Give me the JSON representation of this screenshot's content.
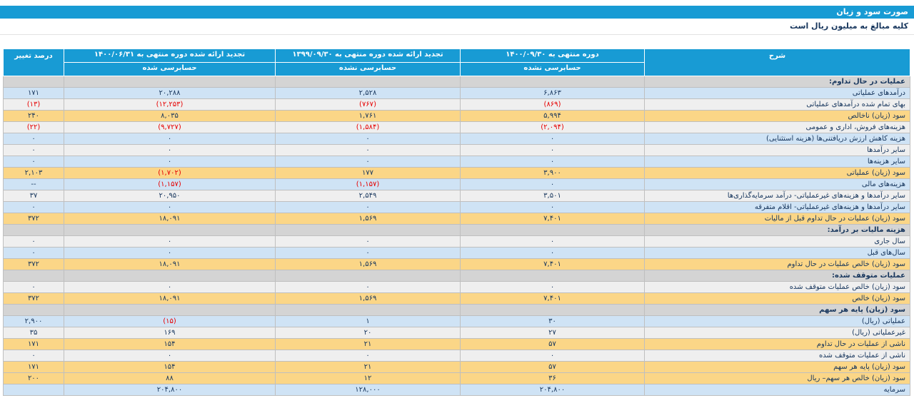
{
  "page": {
    "title_bar": "صورت سود و زیان",
    "subtitle": "کلیه مبالغ به میلیون ریال است"
  },
  "colors": {
    "header_bg": "#189bd4",
    "row_blue": "#cfe3f5",
    "row_gray": "#efefef",
    "row_subtotal_yellow": "#fbd687",
    "section_bg": "#d4d4d4",
    "text_navy": "#17365d",
    "negative_red": "#e60000"
  },
  "table": {
    "headers": {
      "description": "شرح",
      "col1_title": "دوره منتهی به ۱۴۰۰/۰۹/۳۰",
      "col1_sub": "حسابرسی نشده",
      "col2_title": "تجدید ارائه شده دوره منتهی به ۱۳۹۹/۰۹/۳۰",
      "col2_sub": "حسابرسی نشده",
      "col3_title": "تجدید ارائه شده دوره منتهی به ۱۴۰۰/۰۶/۳۱",
      "col3_sub": "حسابرسی شده",
      "percent_change": "درصد تغییر"
    },
    "rows": [
      {
        "type": "section",
        "label": "عملیات در حال تداوم:"
      },
      {
        "type": "data",
        "label": "درآمدهای عملیاتی",
        "c1": "۶,۸۶۳",
        "c2": "۲,۵۲۸",
        "c3": "۲۰,۲۸۸",
        "pct": "۱۷۱",
        "highlight": false
      },
      {
        "type": "data",
        "label": "بهای تمام شده درآمدهای عملیاتی",
        "c1": "(۸۶۹)",
        "c2": "(۷۶۷)",
        "c3": "(۱۲,۲۵۳)",
        "pct": "(۱۳)",
        "highlight": false
      },
      {
        "type": "data",
        "label": "سود (زیان) ناخالص",
        "c1": "۵,۹۹۴",
        "c2": "۱,۷۶۱",
        "c3": "۸,۰۳۵",
        "pct": "۲۴۰",
        "highlight": true
      },
      {
        "type": "data",
        "label": "هزینه‌های فروش، اداری و عمومی",
        "c1": "(۲,۰۹۴)",
        "c2": "(۱,۵۸۴)",
        "c3": "(۹,۷۲۷)",
        "pct": "(۲۲)",
        "highlight": false
      },
      {
        "type": "data",
        "label": "هزینه کاهش ارزش دریافتنی‌ها (هزینه استثنایی)",
        "c1": "۰",
        "c2": "۰",
        "c3": "۰",
        "pct": "۰",
        "highlight": false
      },
      {
        "type": "data",
        "label": "سایر درآمدها",
        "c1": "۰",
        "c2": "۰",
        "c3": "۰",
        "pct": "۰",
        "highlight": false
      },
      {
        "type": "data",
        "label": "سایر هزینه‌ها",
        "c1": "۰",
        "c2": "۰",
        "c3": "۰",
        "pct": "۰",
        "highlight": false
      },
      {
        "type": "data",
        "label": "سود (زیان) عملیاتی",
        "c1": "۳,۹۰۰",
        "c2": "۱۷۷",
        "c3": "(۱,۷۰۲)",
        "pct": "۲,۱۰۳",
        "highlight": true
      },
      {
        "type": "data",
        "label": "هزینه‌های مالی",
        "c1": "۰",
        "c2": "(۱,۱۵۷)",
        "c3": "(۱,۱۵۷)",
        "pct": "--",
        "highlight": false
      },
      {
        "type": "data",
        "label": "سایر درآمدها و هزینه‌های غیرعملیاتی- درآمد سرمایه‌گذاری‌ها",
        "c1": "۳,۵۰۱",
        "c2": "۲,۵۴۹",
        "c3": "۲۰,۹۵۰",
        "pct": "۳۷",
        "highlight": false
      },
      {
        "type": "data",
        "label": "سایر درآمدها و هزینه‌های غیرعملیاتی- اقلام متفرقه",
        "c1": "۰",
        "c2": "۰",
        "c3": "۰",
        "pct": "۰",
        "highlight": false
      },
      {
        "type": "data",
        "label": "سود (زیان) عملیات در حال تداوم قبل از مالیات",
        "c1": "۷,۴۰۱",
        "c2": "۱,۵۶۹",
        "c3": "۱۸,۰۹۱",
        "pct": "۳۷۲",
        "highlight": true
      },
      {
        "type": "section",
        "label": "هزینه مالیات بر درآمد:"
      },
      {
        "type": "data",
        "label": "سال جاری",
        "c1": "۰",
        "c2": "۰",
        "c3": "۰",
        "pct": "۰",
        "highlight": false
      },
      {
        "type": "data",
        "label": "سال‌های قبل",
        "c1": "۰",
        "c2": "۰",
        "c3": "۰",
        "pct": "۰",
        "highlight": false
      },
      {
        "type": "data",
        "label": "سود (زیان) خالص عملیات در حال تداوم",
        "c1": "۷,۴۰۱",
        "c2": "۱,۵۶۹",
        "c3": "۱۸,۰۹۱",
        "pct": "۳۷۲",
        "highlight": true
      },
      {
        "type": "section",
        "label": "عملیات متوقف شده:"
      },
      {
        "type": "data",
        "label": "سود (زیان) خالص عملیات متوقف شده",
        "c1": "۰",
        "c2": "۰",
        "c3": "۰",
        "pct": "۰",
        "highlight": false
      },
      {
        "type": "data",
        "label": "سود (زیان) خالص",
        "c1": "۷,۴۰۱",
        "c2": "۱,۵۶۹",
        "c3": "۱۸,۰۹۱",
        "pct": "۳۷۲",
        "highlight": true
      },
      {
        "type": "section",
        "label": "سود (زیان) پایه هر سهم"
      },
      {
        "type": "data",
        "label": "عملیاتی (ریال)",
        "c1": "۳۰",
        "c2": "۱",
        "c3": "(۱۵)",
        "pct": "۲,۹۰۰",
        "highlight": false
      },
      {
        "type": "data",
        "label": "غیرعملیاتی (ریال)",
        "c1": "۲۷",
        "c2": "۲۰",
        "c3": "۱۶۹",
        "pct": "۳۵",
        "highlight": false
      },
      {
        "type": "data",
        "label": "ناشی از عملیات در حال تداوم",
        "c1": "۵۷",
        "c2": "۲۱",
        "c3": "۱۵۴",
        "pct": "۱۷۱",
        "highlight": true
      },
      {
        "type": "data",
        "label": "ناشی از عملیات متوقف شده",
        "c1": "۰",
        "c2": "۰",
        "c3": "۰",
        "pct": "۰",
        "highlight": false
      },
      {
        "type": "data",
        "label": "سود (زیان) پایه هر سهم",
        "c1": "۵۷",
        "c2": "۲۱",
        "c3": "۱۵۴",
        "pct": "۱۷۱",
        "highlight": true
      },
      {
        "type": "data",
        "label": "سود (زیان) خالص هر سهم– ریال",
        "c1": "۳۶",
        "c2": "۱۲",
        "c3": "۸۸",
        "pct": "۲۰۰",
        "highlight": true
      },
      {
        "type": "data",
        "label": "سرمایه",
        "c1": "۲۰۴,۸۰۰",
        "c2": "۱۲۸,۰۰۰",
        "c3": "۲۰۴,۸۰۰",
        "pct": "",
        "highlight": false
      }
    ]
  }
}
